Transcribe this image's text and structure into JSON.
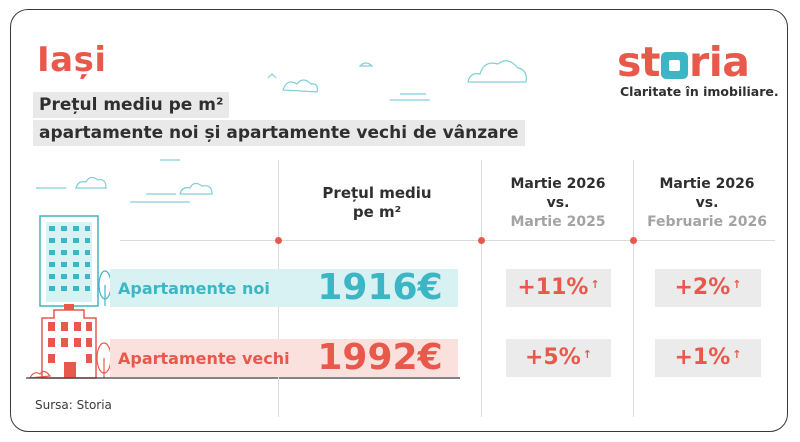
{
  "header": {
    "city": "Iași",
    "title_line1": "Prețul mediu pe m²",
    "title_line2": "apartamente noi și apartamente vechi de vânzare"
  },
  "brand": {
    "name_prefix": "st",
    "name_suffix": "ria",
    "tagline": "Claritate în imobiliare."
  },
  "colors": {
    "accent": "#e8594b",
    "teal": "#3cb6c4",
    "teal_band": "#d8f1f3",
    "pink_band": "#fbe1de",
    "grey_box": "#ebebeb"
  },
  "chart_data": {
    "type": "table",
    "columns": [
      {
        "line1": "Prețul mediu",
        "line2": "pe m²"
      },
      {
        "line1": "Martie 2026",
        "line2": "vs.",
        "line3": "Martie 2025"
      },
      {
        "line1": "Martie 2026",
        "line2": "vs.",
        "line3": "Februarie 2026"
      }
    ],
    "rows": [
      {
        "label": "Apartamente noi",
        "price": "1916€",
        "yoy": "+11%",
        "mom": "+2%"
      },
      {
        "label": "Apartamente vechi",
        "price": "1992€",
        "yoy": "+5%",
        "mom": "+1%"
      }
    ]
  },
  "arrow_glyph": "↑",
  "footer": {
    "source": "Sursa: Storia"
  }
}
